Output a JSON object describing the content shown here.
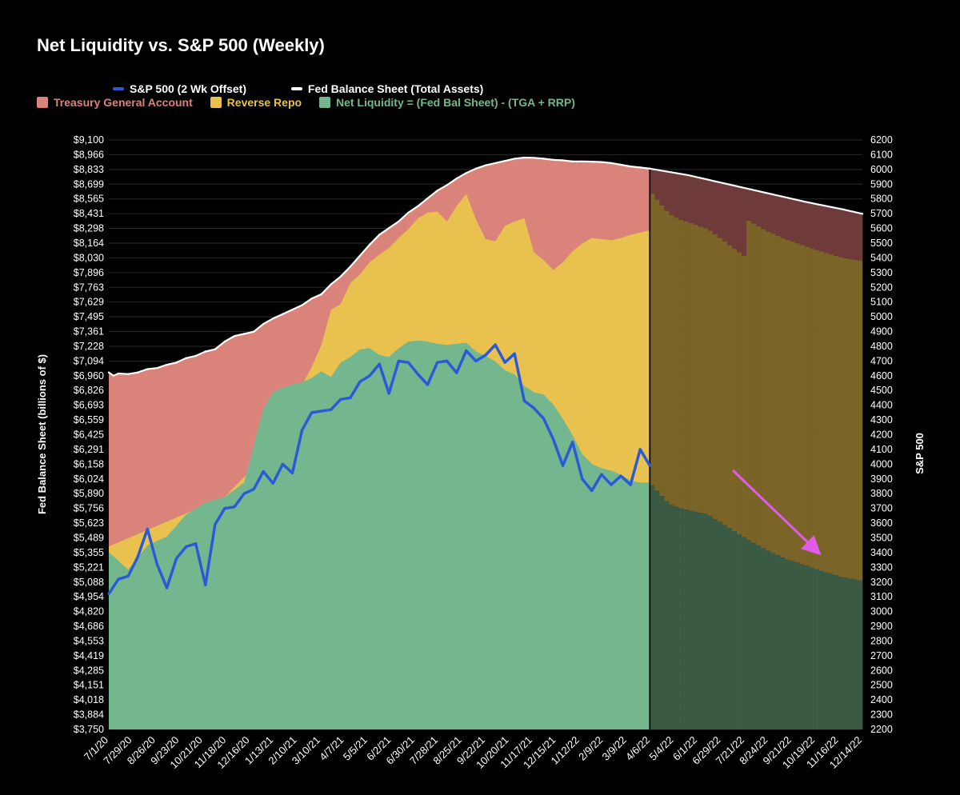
{
  "chart_data": {
    "type": "area",
    "title": "Net Liquidity vs. S&P 500 (Weekly)",
    "ylabel": "Fed Balance Sheet (billions of $)",
    "y2label": "S&P 500",
    "ylim": [
      3750,
      9100
    ],
    "y2lim": [
      2200,
      6200
    ],
    "legend": [
      {
        "name": "S&P 500 (2 Wk Offset)",
        "color": "#2a5bd7",
        "kind": "line"
      },
      {
        "name": "Fed Balance Sheet (Total Assets)",
        "color": "#ffffff",
        "kind": "line"
      },
      {
        "name": "Treasury General Account",
        "color": "#d9837b",
        "kind": "box"
      },
      {
        "name": "Reverse Repo",
        "color": "#e8c14e",
        "kind": "box"
      },
      {
        "name": "Net Liquidity = (Fed Bal Sheet) - (TGA + RRP)",
        "color": "#74b78e",
        "kind": "box"
      }
    ],
    "left_ticks": [
      "$9,100",
      "$8,966",
      "$8,833",
      "$8,699",
      "$8,565",
      "$8,431",
      "$8,298",
      "$8,164",
      "$8,030",
      "$7,896",
      "$7,763",
      "$7,629",
      "$7,495",
      "$7,361",
      "$7,228",
      "$7,094",
      "$6,960",
      "$6,826",
      "$6,693",
      "$6,559",
      "$6,425",
      "$6,291",
      "$6,158",
      "$6,024",
      "$5,890",
      "$5,756",
      "$5,623",
      "$5,489",
      "$5,355",
      "$5,221",
      "$5,088",
      "$4,954",
      "$4,820",
      "$4,686",
      "$4,553",
      "$4,419",
      "$4,285",
      "$4,151",
      "$4,018",
      "$3,884",
      "$3,750"
    ],
    "right_ticks": [
      "6200",
      "6100",
      "6000",
      "5900",
      "5800",
      "5700",
      "5600",
      "5500",
      "5400",
      "5300",
      "5200",
      "5100",
      "5000",
      "4900",
      "4800",
      "4700",
      "4600",
      "4500",
      "4400",
      "4300",
      "4200",
      "4100",
      "4000",
      "3900",
      "3800",
      "3700",
      "3600",
      "3500",
      "3400",
      "3300",
      "3200",
      "3100",
      "3000",
      "2900",
      "2800",
      "2700",
      "2600",
      "2500",
      "2400",
      "2300",
      "2200"
    ],
    "x_ticks": [
      "7/1/20",
      "7/29/20",
      "8/26/20",
      "9/23/20",
      "10/21/20",
      "11/18/20",
      "12/16/20",
      "1/13/21",
      "2/10/21",
      "3/10/21",
      "4/7/21",
      "5/5/21",
      "6/2/21",
      "6/30/21",
      "7/28/21",
      "8/25/21",
      "9/22/21",
      "10/20/21",
      "11/17/21",
      "12/15/21",
      "1/12/22",
      "2/9/22",
      "3/9/22",
      "4/6/22",
      "5/4/22",
      "6/1/22",
      "6/29/22",
      "7/21/22",
      "8/24/22",
      "9/21/22",
      "10/19/22",
      "11/16/22",
      "12/14/22"
    ],
    "x_index_range": [
      0,
      78
    ],
    "split_index": 56,
    "series": [
      {
        "name": "Fed Balance Sheet (Total Assets)",
        "x": [
          0,
          0.5,
          1,
          2,
          3,
          4,
          5,
          6,
          7,
          8,
          9,
          10,
          11,
          12,
          13,
          14,
          15,
          16,
          17,
          18,
          19,
          20,
          21,
          22,
          23,
          24,
          25,
          26,
          27,
          28,
          29,
          30,
          31,
          32,
          33,
          34,
          35,
          36,
          37,
          38,
          39,
          40,
          41,
          42,
          43,
          44,
          45,
          46,
          47,
          48,
          49,
          50,
          51,
          52,
          53,
          54,
          55,
          56,
          60,
          64,
          68,
          72,
          76,
          78
        ],
        "values": [
          6990,
          6960,
          6980,
          6975,
          6990,
          7020,
          7030,
          7060,
          7080,
          7120,
          7140,
          7180,
          7200,
          7270,
          7320,
          7340,
          7360,
          7430,
          7480,
          7520,
          7560,
          7600,
          7660,
          7700,
          7790,
          7860,
          7950,
          8050,
          8150,
          8240,
          8300,
          8360,
          8440,
          8500,
          8570,
          8640,
          8690,
          8750,
          8800,
          8840,
          8870,
          8890,
          8910,
          8930,
          8940,
          8938,
          8930,
          8920,
          8915,
          8905,
          8905,
          8903,
          8900,
          8890,
          8875,
          8860,
          8850,
          8840,
          8780,
          8700,
          8620,
          8540,
          8470,
          8430
        ]
      },
      {
        "name": "Reverse Repo (top)",
        "x": [
          0,
          8,
          12,
          16,
          17,
          18,
          19,
          20,
          21,
          22,
          23,
          24,
          25,
          26,
          27,
          28,
          29,
          30,
          31,
          32,
          33,
          34,
          35,
          36,
          37,
          38,
          39,
          40,
          41,
          42,
          43,
          44,
          45,
          46,
          47,
          48,
          49,
          50,
          51,
          52,
          53,
          54,
          55,
          56
        ],
        "values": [
          5410,
          5710,
          5860,
          6220,
          6580,
          6730,
          6860,
          6870,
          7040,
          7240,
          7560,
          7610,
          7800,
          7880,
          7990,
          8060,
          8120,
          8210,
          8290,
          8390,
          8440,
          8450,
          8360,
          8500,
          8610,
          8380,
          8200,
          8180,
          8320,
          8360,
          8390,
          8080,
          8010,
          7920,
          7990,
          8090,
          8160,
          8210,
          8200,
          8190,
          8210,
          8240,
          8260,
          8280
        ]
      },
      {
        "name": "Net Liquidity = (Fed Bal Sheet) - (TGA + RRP)",
        "x": [
          0,
          2,
          4,
          6,
          8,
          10,
          12,
          14,
          16,
          17,
          18,
          19,
          20,
          21,
          22,
          23,
          24,
          25,
          26,
          27,
          28,
          29,
          30,
          31,
          32,
          33,
          34,
          35,
          36,
          37,
          38,
          39,
          40,
          41,
          42,
          43,
          44,
          45,
          46,
          47,
          48,
          49,
          50,
          51,
          52,
          53,
          54,
          55,
          56,
          57,
          58,
          59,
          60,
          62,
          64,
          66,
          68,
          70,
          72,
          74,
          76,
          78
        ],
        "values": [
          5360,
          5200,
          5420,
          5500,
          5700,
          5810,
          5860,
          5990,
          6660,
          6810,
          6850,
          6880,
          6900,
          6940,
          7000,
          6950,
          7080,
          7130,
          7200,
          7210,
          7150,
          7130,
          7210,
          7270,
          7280,
          7270,
          7250,
          7240,
          7250,
          7260,
          7180,
          7140,
          7090,
          7010,
          6970,
          6870,
          6810,
          6790,
          6700,
          6570,
          6420,
          6250,
          6160,
          6120,
          6100,
          6060,
          6010,
          5990,
          5990,
          5890,
          5800,
          5760,
          5740,
          5700,
          5590,
          5480,
          5380,
          5300,
          5240,
          5180,
          5130,
          5100
        ]
      },
      {
        "name": "S&P 500 (2 Wk Offset)",
        "x": [
          0,
          1,
          2,
          3,
          4,
          5,
          6,
          7,
          8,
          9,
          10,
          11,
          12,
          13,
          14,
          15,
          16,
          17,
          18,
          19,
          20,
          21,
          22,
          23,
          24,
          25,
          26,
          27,
          28,
          29,
          30,
          31,
          32,
          33,
          34,
          35,
          36,
          37,
          38,
          39,
          40,
          41,
          42,
          43,
          44,
          45,
          46,
          47,
          48,
          49,
          50,
          51,
          52,
          53,
          54,
          55,
          56
        ],
        "values": [
          3120,
          3220,
          3240,
          3370,
          3560,
          3320,
          3160,
          3360,
          3440,
          3460,
          3180,
          3590,
          3700,
          3710,
          3800,
          3830,
          3950,
          3870,
          4000,
          3940,
          4230,
          4350,
          4360,
          4370,
          4440,
          4450,
          4560,
          4600,
          4680,
          4480,
          4700,
          4690,
          4610,
          4540,
          4690,
          4700,
          4620,
          4770,
          4700,
          4740,
          4810,
          4690,
          4750,
          4430,
          4380,
          4310,
          4170,
          3990,
          4150,
          3900,
          3820,
          3930,
          3860,
          3920,
          3860,
          4100,
          3990
        ]
      }
    ]
  }
}
